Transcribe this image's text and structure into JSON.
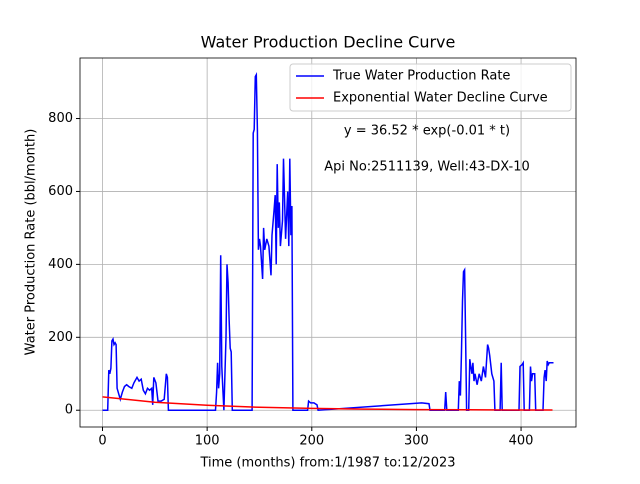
{
  "chart_data": {
    "type": "line",
    "title": "Water Production Decline Curve",
    "xlabel": "Time (months) from:1/1987 to:12/2023",
    "ylabel": "Water Production Rate (bbl/month)",
    "annotations": [
      "y = 36.52 * exp(-0.01 * t)",
      "Api No:2511139, Well:43-DX-10"
    ],
    "xlim": [
      -21.5,
      452.5
    ],
    "ylim": [
      -46,
      966
    ],
    "xticks": [
      0,
      100,
      200,
      300,
      400
    ],
    "yticks": [
      0,
      200,
      400,
      600,
      800
    ],
    "grid": true,
    "legend": "upper right",
    "series": [
      {
        "name": "True Water Production Rate",
        "color": "#0000ff",
        "x": [
          0,
          5,
          6,
          7,
          8,
          9,
          10,
          11,
          12,
          13,
          14,
          16,
          17,
          19,
          21,
          23,
          25,
          28,
          30,
          33,
          35,
          37,
          39,
          41,
          43,
          45,
          47,
          48,
          49,
          51,
          53,
          56,
          59,
          61,
          62,
          63,
          108,
          109,
          110,
          111,
          112,
          113,
          114,
          115,
          116,
          118,
          119,
          120,
          121,
          122,
          123,
          124,
          143,
          144,
          145,
          146,
          147,
          148,
          149,
          150,
          151,
          153,
          154,
          155,
          157,
          159,
          161,
          162,
          164,
          165,
          166,
          167,
          168,
          169,
          170,
          172,
          173,
          175,
          177,
          178,
          179,
          180,
          181,
          182,
          196,
          197,
          199,
          202,
          205,
          206,
          305,
          312,
          313,
          327,
          328,
          329,
          340,
          341,
          342,
          343,
          344,
          345,
          346,
          347,
          348,
          350,
          351,
          352,
          353,
          354,
          355,
          356,
          358,
          360,
          362,
          364,
          366,
          368,
          369,
          370,
          372,
          374,
          375,
          380,
          381,
          382,
          398,
          399,
          401,
          402,
          403,
          408,
          409,
          410,
          411,
          413,
          414,
          421,
          422,
          423,
          424,
          425,
          426,
          427,
          431
        ],
        "values": [
          0,
          0,
          110,
          100,
          115,
          190,
          195,
          180,
          185,
          180,
          60,
          40,
          30,
          50,
          65,
          70,
          65,
          60,
          75,
          90,
          80,
          85,
          55,
          45,
          60,
          55,
          60,
          15,
          90,
          75,
          25,
          25,
          30,
          100,
          90,
          0,
          0,
          50,
          130,
          60,
          100,
          425,
          120,
          60,
          0,
          200,
          400,
          350,
          250,
          170,
          160,
          0,
          0,
          760,
          770,
          915,
          920,
          770,
          440,
          470,
          450,
          360,
          500,
          440,
          470,
          450,
          370,
          480,
          550,
          590,
          400,
          675,
          500,
          570,
          450,
          520,
          690,
          470,
          600,
          450,
          690,
          480,
          560,
          0,
          0,
          25,
          20,
          20,
          15,
          0,
          20,
          18,
          0,
          0,
          50,
          0,
          0,
          80,
          40,
          150,
          300,
          380,
          385,
          200,
          0,
          0,
          140,
          120,
          100,
          130,
          80,
          100,
          70,
          100,
          80,
          120,
          90,
          180,
          170,
          150,
          100,
          80,
          0,
          0,
          130,
          0,
          0,
          120,
          125,
          130,
          0,
          0,
          120,
          80,
          100,
          100,
          0,
          0,
          90,
          110,
          80,
          135,
          125,
          130,
          130
        ]
      },
      {
        "name": "Exponential Water Decline Curve",
        "color": "#ff0000",
        "x": [
          0,
          50,
          100,
          150,
          200,
          250,
          300,
          350,
          400,
          430
        ],
        "values": [
          36.52,
          22.15,
          13.43,
          8.15,
          4.94,
          3.0,
          1.82,
          1.1,
          0.67,
          0.5
        ]
      }
    ]
  }
}
